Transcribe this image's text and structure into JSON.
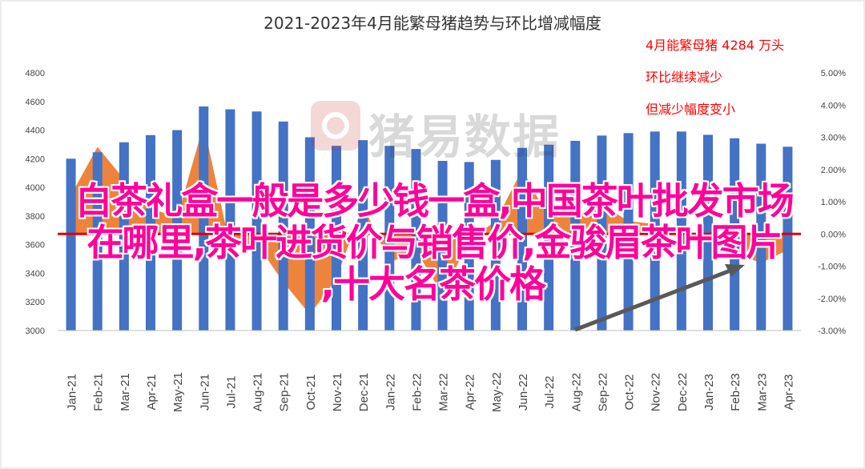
{
  "chart_data": {
    "type": "bar",
    "title": "2021-2023年4月能繁母猪趋势与环比增减幅度",
    "categories": [
      "Jan-21",
      "Feb-21",
      "Mar-21",
      "Apr-21",
      "May-21",
      "Jun-21",
      "Jul-21",
      "Aug-21",
      "Sep-21",
      "Oct-21",
      "Nov-21",
      "Dec-21",
      "Jan-22",
      "Feb-22",
      "Mar-22",
      "Apr-22",
      "May-22",
      "Jun-22",
      "Jul-22",
      "Aug-22",
      "Sep-22",
      "Oct-22",
      "Nov-22",
      "Dec-22",
      "Jan-23",
      "Feb-23",
      "Mar-23",
      "Apr-23"
    ],
    "series": [
      {
        "kind": "bar",
        "axis": "left",
        "color": "#4472c4",
        "values": [
          4200,
          4245,
          4315,
          4365,
          4400,
          4565,
          4545,
          4530,
          4460,
          4350,
          4290,
          4330,
          4290,
          4268,
          4185,
          4177,
          4192,
          4276,
          4298,
          4325,
          4362,
          4379,
          4390,
          4390,
          4367,
          4343,
          4305,
          4284
        ]
      },
      {
        "kind": "area",
        "axis": "right",
        "color": "#ed7d31",
        "values": [
          1.2,
          2.7,
          1.7,
          0.8,
          0.5,
          3.4,
          -0.4,
          -0.3,
          -1.5,
          -2.5,
          -1.4,
          0.9,
          -0.9,
          -0.5,
          -1.9,
          -0.2,
          0.4,
          2.0,
          0.5,
          0.6,
          0.9,
          0.4,
          0.3,
          0.0,
          -0.5,
          -0.6,
          -0.9,
          -0.5
        ]
      }
    ],
    "y_left": {
      "min": 3000,
      "max": 4800,
      "ticks": [
        "3000",
        "3200",
        "3400",
        "3600",
        "3800",
        "4000",
        "4200",
        "4400",
        "4600",
        "4800"
      ]
    },
    "y_right": {
      "min": -3.0,
      "max": 5.0,
      "ticks": [
        "-3.00%",
        "-2.00%",
        "-1.00%",
        "0.00%",
        "1.00%",
        "2.00%",
        "3.00%",
        "4.00%",
        "5.00%"
      ]
    },
    "grid": false,
    "annotations": [
      {
        "text": "4月能繁母猪 4284 万头",
        "color": "#ff0000"
      },
      {
        "text": "环比继续减少",
        "color": "#ff0000"
      },
      {
        "text": "但减少幅度变小",
        "color": "#ff0000"
      }
    ]
  },
  "watermark": {
    "text": "猪易数据"
  },
  "overlay": {
    "lines": [
      "白茶礼盒一般是多少钱一盒,中国茶叶批发市场",
      "在哪里,茶叶进货价与销售价,金骏眉茶叶图片",
      ",十大名茶价格"
    ],
    "color": "#ff0099"
  }
}
